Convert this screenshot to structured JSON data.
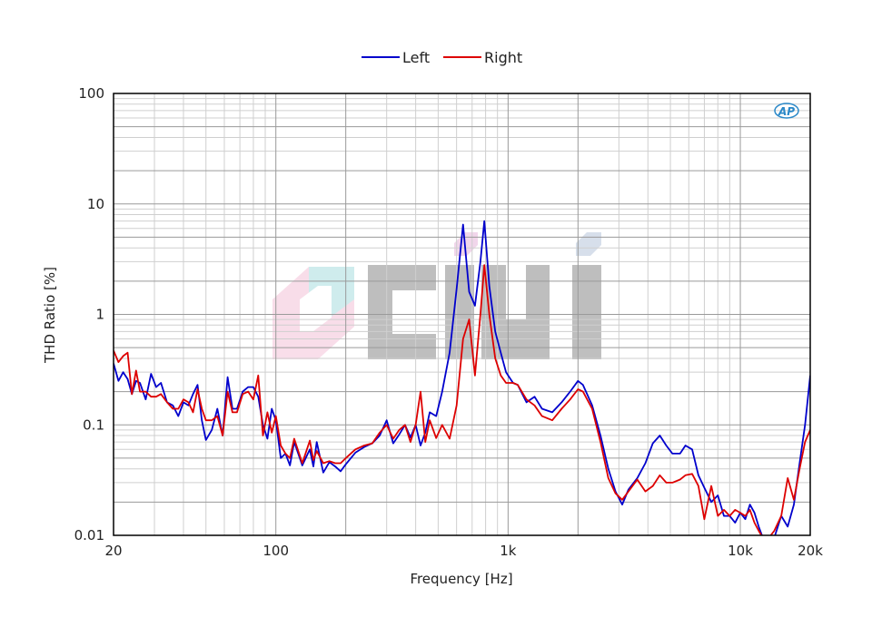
{
  "chart_data": {
    "type": "line",
    "xlabel": "Frequency [Hz]",
    "ylabel": "THD Ratio [%]",
    "x_scale": "log",
    "y_scale": "log",
    "xlim": [
      20,
      20000
    ],
    "ylim": [
      0.01,
      100
    ],
    "x_ticks": [
      {
        "value": 20,
        "label": "20"
      },
      {
        "value": 100,
        "label": "100"
      },
      {
        "value": 1000,
        "label": "1k"
      },
      {
        "value": 10000,
        "label": "10k"
      },
      {
        "value": 20000,
        "label": "20k"
      }
    ],
    "y_ticks": [
      {
        "value": 0.01,
        "label": "0.01"
      },
      {
        "value": 0.1,
        "label": "0.1"
      },
      {
        "value": 1,
        "label": "1"
      },
      {
        "value": 10,
        "label": "10"
      },
      {
        "value": 100,
        "label": "100"
      }
    ],
    "grid": true,
    "legend_position": "top-center",
    "logo": {
      "text": "AP",
      "color": "#2a88c8"
    },
    "watermark": {
      "text": "CIHI"
    },
    "series": [
      {
        "name": "Left",
        "color": "#0000cc",
        "points": [
          [
            20,
            0.36
          ],
          [
            21,
            0.25
          ],
          [
            22,
            0.3
          ],
          [
            23,
            0.26
          ],
          [
            24,
            0.19
          ],
          [
            25,
            0.25
          ],
          [
            26,
            0.24
          ],
          [
            27.5,
            0.17
          ],
          [
            29,
            0.29
          ],
          [
            30.5,
            0.22
          ],
          [
            32,
            0.24
          ],
          [
            34,
            0.16
          ],
          [
            36,
            0.15
          ],
          [
            38,
            0.12
          ],
          [
            40,
            0.16
          ],
          [
            42,
            0.15
          ],
          [
            44,
            0.19
          ],
          [
            46,
            0.23
          ],
          [
            48,
            0.11
          ],
          [
            50,
            0.073
          ],
          [
            53,
            0.09
          ],
          [
            56,
            0.14
          ],
          [
            59,
            0.08
          ],
          [
            62,
            0.27
          ],
          [
            65,
            0.14
          ],
          [
            68,
            0.14
          ],
          [
            72,
            0.2
          ],
          [
            76,
            0.22
          ],
          [
            80,
            0.22
          ],
          [
            84,
            0.18
          ],
          [
            88,
            0.1
          ],
          [
            92,
            0.075
          ],
          [
            96,
            0.14
          ],
          [
            100,
            0.11
          ],
          [
            105,
            0.05
          ],
          [
            110,
            0.055
          ],
          [
            115,
            0.043
          ],
          [
            120,
            0.07
          ],
          [
            130,
            0.043
          ],
          [
            140,
            0.06
          ],
          [
            145,
            0.042
          ],
          [
            150,
            0.07
          ],
          [
            160,
            0.037
          ],
          [
            170,
            0.046
          ],
          [
            180,
            0.042
          ],
          [
            190,
            0.038
          ],
          [
            200,
            0.044
          ],
          [
            220,
            0.056
          ],
          [
            240,
            0.063
          ],
          [
            260,
            0.068
          ],
          [
            280,
            0.08
          ],
          [
            300,
            0.11
          ],
          [
            320,
            0.068
          ],
          [
            340,
            0.082
          ],
          [
            360,
            0.1
          ],
          [
            380,
            0.077
          ],
          [
            400,
            0.1
          ],
          [
            420,
            0.065
          ],
          [
            440,
            0.085
          ],
          [
            460,
            0.13
          ],
          [
            490,
            0.12
          ],
          [
            520,
            0.2
          ],
          [
            560,
            0.45
          ],
          [
            600,
            1.7
          ],
          [
            640,
            6.5
          ],
          [
            680,
            1.6
          ],
          [
            720,
            1.2
          ],
          [
            760,
            3.0
          ],
          [
            790,
            7.0
          ],
          [
            830,
            1.8
          ],
          [
            880,
            0.7
          ],
          [
            930,
            0.45
          ],
          [
            980,
            0.3
          ],
          [
            1050,
            0.24
          ],
          [
            1100,
            0.23
          ],
          [
            1200,
            0.16
          ],
          [
            1300,
            0.18
          ],
          [
            1400,
            0.14
          ],
          [
            1550,
            0.13
          ],
          [
            1700,
            0.16
          ],
          [
            1850,
            0.2
          ],
          [
            2000,
            0.25
          ],
          [
            2100,
            0.23
          ],
          [
            2300,
            0.15
          ],
          [
            2500,
            0.08
          ],
          [
            2700,
            0.04
          ],
          [
            2900,
            0.025
          ],
          [
            3100,
            0.019
          ],
          [
            3300,
            0.026
          ],
          [
            3600,
            0.033
          ],
          [
            3900,
            0.045
          ],
          [
            4200,
            0.068
          ],
          [
            4500,
            0.08
          ],
          [
            4800,
            0.065
          ],
          [
            5100,
            0.055
          ],
          [
            5500,
            0.055
          ],
          [
            5800,
            0.065
          ],
          [
            6200,
            0.06
          ],
          [
            6600,
            0.035
          ],
          [
            7000,
            0.027
          ],
          [
            7500,
            0.02
          ],
          [
            8000,
            0.023
          ],
          [
            8500,
            0.015
          ],
          [
            9000,
            0.015
          ],
          [
            9500,
            0.013
          ],
          [
            10000,
            0.016
          ],
          [
            10500,
            0.014
          ],
          [
            11000,
            0.019
          ],
          [
            11500,
            0.016
          ],
          [
            12000,
            0.012
          ],
          [
            12500,
            0.0095
          ],
          [
            13000,
            0.0085
          ],
          [
            14000,
            0.0095
          ],
          [
            15000,
            0.015
          ],
          [
            16000,
            0.012
          ],
          [
            17000,
            0.019
          ],
          [
            18000,
            0.045
          ],
          [
            19000,
            0.1
          ],
          [
            20000,
            0.28
          ]
        ]
      },
      {
        "name": "Right",
        "color": "#dd0000",
        "points": [
          [
            20,
            0.47
          ],
          [
            21,
            0.37
          ],
          [
            22,
            0.42
          ],
          [
            23,
            0.45
          ],
          [
            24,
            0.19
          ],
          [
            25,
            0.31
          ],
          [
            26,
            0.2
          ],
          [
            27.5,
            0.2
          ],
          [
            29,
            0.18
          ],
          [
            30.5,
            0.18
          ],
          [
            32,
            0.19
          ],
          [
            34,
            0.16
          ],
          [
            36,
            0.14
          ],
          [
            38,
            0.14
          ],
          [
            40,
            0.17
          ],
          [
            42,
            0.16
          ],
          [
            44,
            0.13
          ],
          [
            46,
            0.21
          ],
          [
            48,
            0.14
          ],
          [
            50,
            0.11
          ],
          [
            53,
            0.11
          ],
          [
            56,
            0.12
          ],
          [
            59,
            0.08
          ],
          [
            62,
            0.2
          ],
          [
            65,
            0.13
          ],
          [
            68,
            0.13
          ],
          [
            72,
            0.19
          ],
          [
            76,
            0.2
          ],
          [
            80,
            0.17
          ],
          [
            84,
            0.28
          ],
          [
            88,
            0.08
          ],
          [
            92,
            0.13
          ],
          [
            96,
            0.085
          ],
          [
            100,
            0.12
          ],
          [
            105,
            0.065
          ],
          [
            110,
            0.055
          ],
          [
            115,
            0.05
          ],
          [
            120,
            0.075
          ],
          [
            130,
            0.045
          ],
          [
            140,
            0.072
          ],
          [
            145,
            0.048
          ],
          [
            150,
            0.058
          ],
          [
            160,
            0.045
          ],
          [
            170,
            0.047
          ],
          [
            180,
            0.045
          ],
          [
            190,
            0.045
          ],
          [
            200,
            0.05
          ],
          [
            220,
            0.06
          ],
          [
            240,
            0.065
          ],
          [
            260,
            0.068
          ],
          [
            280,
            0.085
          ],
          [
            300,
            0.1
          ],
          [
            320,
            0.075
          ],
          [
            340,
            0.09
          ],
          [
            360,
            0.1
          ],
          [
            380,
            0.07
          ],
          [
            400,
            0.1
          ],
          [
            420,
            0.2
          ],
          [
            440,
            0.07
          ],
          [
            460,
            0.11
          ],
          [
            490,
            0.076
          ],
          [
            520,
            0.1
          ],
          [
            560,
            0.075
          ],
          [
            600,
            0.15
          ],
          [
            640,
            0.6
          ],
          [
            680,
            0.9
          ],
          [
            720,
            0.28
          ],
          [
            760,
            1.0
          ],
          [
            790,
            2.8
          ],
          [
            830,
            1.0
          ],
          [
            880,
            0.4
          ],
          [
            930,
            0.28
          ],
          [
            980,
            0.24
          ],
          [
            1050,
            0.24
          ],
          [
            1100,
            0.23
          ],
          [
            1200,
            0.17
          ],
          [
            1300,
            0.15
          ],
          [
            1400,
            0.12
          ],
          [
            1550,
            0.11
          ],
          [
            1700,
            0.14
          ],
          [
            1850,
            0.17
          ],
          [
            2000,
            0.21
          ],
          [
            2100,
            0.2
          ],
          [
            2300,
            0.14
          ],
          [
            2500,
            0.07
          ],
          [
            2700,
            0.033
          ],
          [
            2900,
            0.024
          ],
          [
            3100,
            0.021
          ],
          [
            3300,
            0.025
          ],
          [
            3600,
            0.032
          ],
          [
            3900,
            0.025
          ],
          [
            4200,
            0.028
          ],
          [
            4500,
            0.035
          ],
          [
            4800,
            0.03
          ],
          [
            5100,
            0.03
          ],
          [
            5500,
            0.032
          ],
          [
            5800,
            0.035
          ],
          [
            6200,
            0.036
          ],
          [
            6600,
            0.028
          ],
          [
            7000,
            0.014
          ],
          [
            7500,
            0.028
          ],
          [
            8000,
            0.015
          ],
          [
            8500,
            0.017
          ],
          [
            9000,
            0.015
          ],
          [
            9500,
            0.017
          ],
          [
            10000,
            0.016
          ],
          [
            10500,
            0.015
          ],
          [
            11000,
            0.017
          ],
          [
            11500,
            0.013
          ],
          [
            12000,
            0.011
          ],
          [
            12500,
            0.0095
          ],
          [
            13000,
            0.009
          ],
          [
            14000,
            0.011
          ],
          [
            15000,
            0.015
          ],
          [
            16000,
            0.033
          ],
          [
            17000,
            0.021
          ],
          [
            18000,
            0.04
          ],
          [
            19000,
            0.07
          ],
          [
            20000,
            0.09
          ]
        ]
      }
    ]
  }
}
